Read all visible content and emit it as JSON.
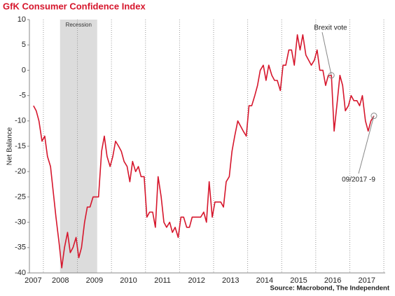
{
  "chart_data": {
    "type": "line",
    "title": "GfK Consumer Confidence Index",
    "y_label": "Net Balance",
    "source": "Source: Macrobond, The Independent",
    "recession": {
      "label": "Recession",
      "range": [
        2008.49,
        2009.58
      ],
      "color": "#dcdcdc"
    },
    "annotations": [
      {
        "text": "Brexit vote"
      },
      {
        "text": "09/2017 -9"
      }
    ],
    "xlim": [
      2007.59,
      2018.04
    ],
    "xticks": [
      {
        "value": 2007.7,
        "label": "2007"
      },
      {
        "value": 2008.5,
        "label": "2008"
      },
      {
        "value": 2009.5,
        "label": "2009"
      },
      {
        "value": 2010.5,
        "label": "2010"
      },
      {
        "value": 2011.5,
        "label": "2011"
      },
      {
        "value": 2012.5,
        "label": "2012"
      },
      {
        "value": 2013.5,
        "label": "2013"
      },
      {
        "value": 2014.5,
        "label": "2014"
      },
      {
        "value": 2015.5,
        "label": "2015"
      },
      {
        "value": 2016.5,
        "label": "2016"
      },
      {
        "value": 2017.5,
        "label": "2017"
      }
    ],
    "xgrid": [
      2008,
      2009,
      2010,
      2011,
      2012,
      2013,
      2014,
      2015,
      2016,
      2017,
      2018
    ],
    "ylim": [
      -40,
      10
    ],
    "yticks": [
      10,
      5,
      0,
      -5,
      -10,
      -15,
      -20,
      -25,
      -30,
      -35,
      -40
    ],
    "x": [
      2007.71,
      2007.79,
      2007.87,
      2007.96,
      2008.04,
      2008.12,
      2008.21,
      2008.29,
      2008.37,
      2008.46,
      2008.54,
      2008.62,
      2008.71,
      2008.79,
      2008.87,
      2008.96,
      2009.04,
      2009.12,
      2009.21,
      2009.29,
      2009.37,
      2009.46,
      2009.54,
      2009.62,
      2009.71,
      2009.79,
      2009.87,
      2009.96,
      2010.04,
      2010.12,
      2010.21,
      2010.29,
      2010.37,
      2010.46,
      2010.54,
      2010.62,
      2010.71,
      2010.79,
      2010.87,
      2010.96,
      2011.04,
      2011.12,
      2011.21,
      2011.29,
      2011.37,
      2011.46,
      2011.54,
      2011.62,
      2011.71,
      2011.79,
      2011.87,
      2011.96,
      2012.04,
      2012.12,
      2012.21,
      2012.29,
      2012.37,
      2012.46,
      2012.54,
      2012.62,
      2012.71,
      2012.79,
      2012.87,
      2012.96,
      2013.04,
      2013.12,
      2013.21,
      2013.29,
      2013.37,
      2013.46,
      2013.54,
      2013.62,
      2013.71,
      2013.79,
      2013.87,
      2013.96,
      2014.04,
      2014.12,
      2014.21,
      2014.29,
      2014.37,
      2014.46,
      2014.54,
      2014.62,
      2014.71,
      2014.79,
      2014.87,
      2014.96,
      2015.04,
      2015.12,
      2015.21,
      2015.29,
      2015.37,
      2015.46,
      2015.54,
      2015.62,
      2015.71,
      2015.79,
      2015.87,
      2015.96,
      2016.04,
      2016.12,
      2016.21,
      2016.29,
      2016.37,
      2016.46,
      2016.54,
      2016.62,
      2016.71,
      2016.79,
      2016.87,
      2016.96,
      2017.04,
      2017.12,
      2017.21,
      2017.29,
      2017.37,
      2017.46,
      2017.54,
      2017.62,
      2017.71
    ],
    "series": [
      {
        "name": "GfK Consumer Confidence Index",
        "color": "#d6162c",
        "values": [
          -7,
          -8,
          -10,
          -14,
          -13,
          -17,
          -19,
          -24,
          -29,
          -34,
          -39,
          -35,
          -32,
          -36,
          -35,
          -33,
          -37,
          -35,
          -30,
          -27,
          -27,
          -25,
          -25,
          -25,
          -16,
          -13,
          -17,
          -19,
          -17,
          -14,
          -15,
          -16,
          -18,
          -19,
          -22,
          -18,
          -20,
          -19,
          -21,
          -21,
          -29,
          -28,
          -28,
          -31,
          -21,
          -25,
          -30,
          -31,
          -30,
          -32,
          -31,
          -33,
          -29,
          -29,
          -31,
          -31,
          -29,
          -29,
          -29,
          -29,
          -28,
          -30,
          -22,
          -29,
          -26,
          -26,
          -26,
          -27,
          -22,
          -21,
          -16,
          -13,
          -10,
          -11,
          -12,
          -13,
          -7,
          -7,
          -5,
          -3,
          0,
          1,
          -2,
          1,
          -1,
          -2,
          -2,
          -4,
          1,
          1,
          4,
          4,
          1,
          7,
          4,
          7,
          3,
          2,
          1,
          2,
          4,
          0,
          0,
          -3,
          -1,
          -1,
          -12,
          -7,
          -1,
          -3,
          -8,
          -7,
          -5,
          -6,
          -6,
          -7,
          -5,
          -10,
          -12,
          -10,
          -9
        ]
      }
    ]
  }
}
